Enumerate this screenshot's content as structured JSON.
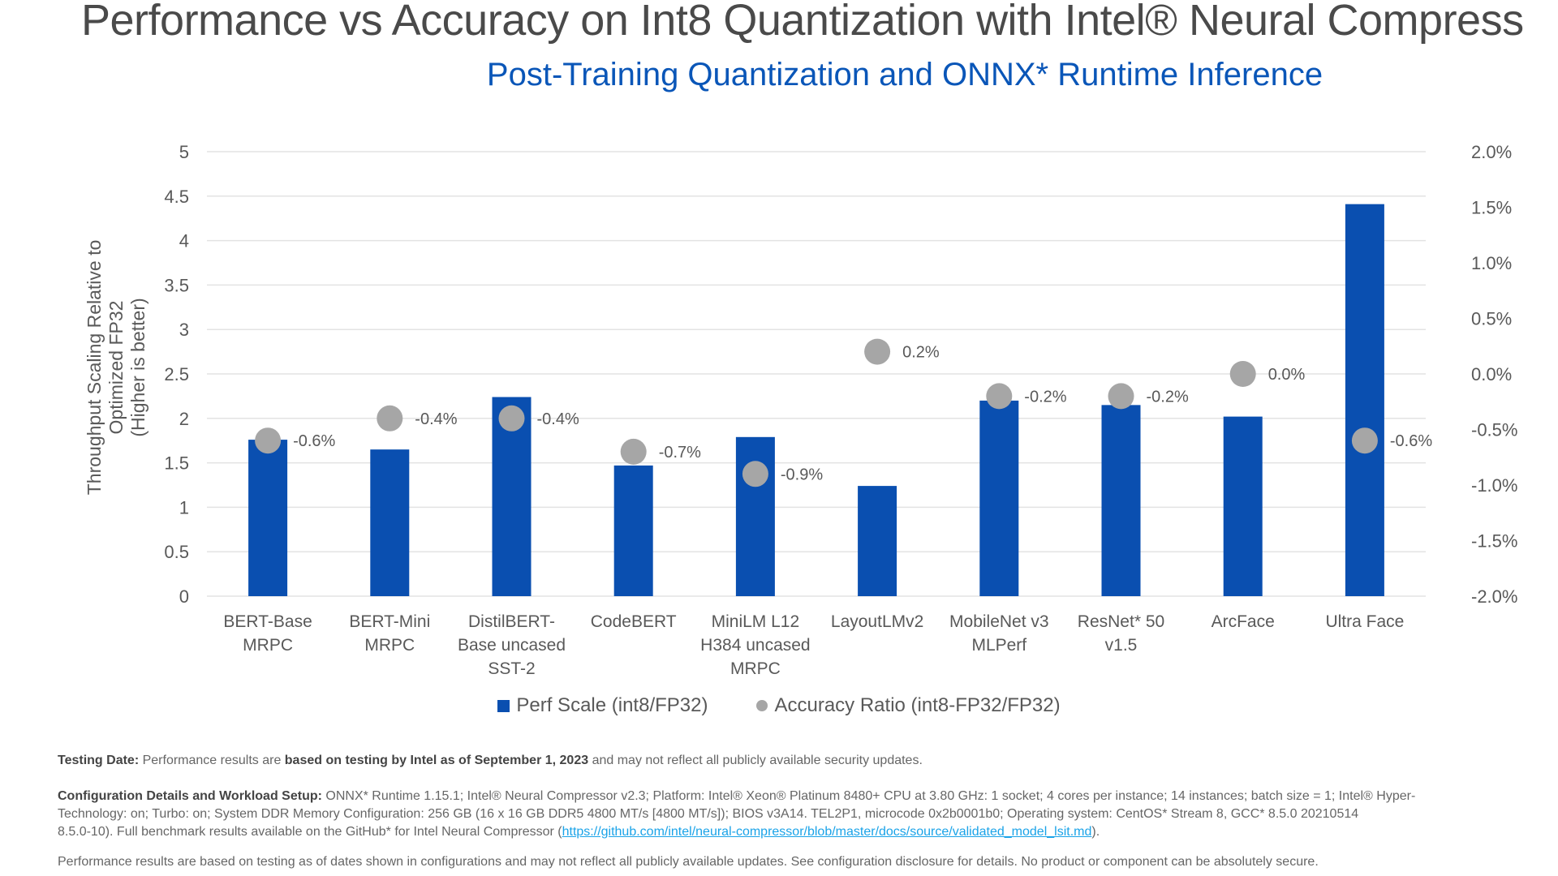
{
  "header": {
    "title": "Performance vs Accuracy on Int8 Quantization with Intel® Neural Compress",
    "subtitle": "Post-Training Quantization and ONNX* Runtime Inference"
  },
  "chart_data": {
    "type": "bar",
    "categories": [
      [
        "BERT-Base",
        "MRPC"
      ],
      [
        "BERT-Mini",
        "MRPC"
      ],
      [
        "DistilBERT-",
        "Base uncased",
        "SST-2"
      ],
      [
        "CodeBERT"
      ],
      [
        "MiniLM L12",
        "H384 uncased",
        "MRPC"
      ],
      [
        "LayoutLMv2"
      ],
      [
        "MobileNet v3",
        "MLPerf"
      ],
      [
        "ResNet* 50",
        "v1.5"
      ],
      [
        "ArcFace"
      ],
      [
        "Ultra Face"
      ]
    ],
    "series": [
      {
        "name": "Perf Scale (int8/FP32)",
        "type": "bar",
        "axis": "left",
        "color": "#0a4fb0",
        "values": [
          1.76,
          1.65,
          2.24,
          1.47,
          1.79,
          1.24,
          2.2,
          2.15,
          2.02,
          4.41
        ]
      },
      {
        "name": "Accuracy Ratio (int8-FP32/FP32)",
        "type": "scatter",
        "axis": "right",
        "color": "#a6a6a6",
        "values": [
          -0.6,
          -0.4,
          -0.4,
          -0.7,
          -0.9,
          0.2,
          -0.2,
          -0.2,
          0.0,
          -0.6
        ],
        "labels": [
          "-0.6%",
          "-0.4%",
          "-0.4%",
          "-0.7%",
          "-0.9%",
          "0.2%",
          "-0.2%",
          "-0.2%",
          "0.0%",
          "-0.6%"
        ]
      }
    ],
    "ylabel_lines": [
      "Throughput Scaling Relative to",
      "Optimized FP32",
      "(Higher is better)"
    ],
    "ylim": [
      0,
      5
    ],
    "yticks": [
      "0",
      "0.5",
      "1",
      "1.5",
      "2",
      "2.5",
      "3",
      "3.5",
      "4",
      "4.5",
      "5"
    ],
    "y2lim": [
      -2.0,
      2.0
    ],
    "y2ticks": [
      "-2.0%",
      "-1.5%",
      "-1.0%",
      "-0.5%",
      "0.0%",
      "0.5%",
      "1.0%",
      "1.5%",
      "2.0%"
    ],
    "grid": true,
    "legend_position": "bottom"
  },
  "footer": {
    "testing_label": "Testing Date:",
    "testing_pre": " Performance results are ",
    "testing_bold": "based on testing by Intel as of September 1, 2023",
    "testing_post": " and may not reflect all publicly available security updates.",
    "config_label": "Configuration Details and Workload Setup:",
    "config_line1": " ONNX* Runtime 1.15.1; Intel® Neural Compressor v2.3; Platform: Intel® Xeon® Platinum 8480+ CPU at 3.80 GHz: 1 socket; 4 cores per instance; 14 instances; batch size = 1; Intel® Hyper-",
    "config_line2": "Technology: on; Turbo: on; System DDR Memory Configuration: 256 GB (16 x 16 GB DDR5 4800 MT/s [4800 MT/s]); BIOS v3A14. TEL2P1, microcode 0x2b0001b0; Operating system: CentOS* Stream 8, GCC* 8.5.0 20210514",
    "config_line3_pre": "8.5.0-10). Full benchmark results available on the GitHub* for Intel Neural Compressor (",
    "config_link": "https://github.com/intel/neural-compressor/blob/master/docs/source/validated_model_lsit.md",
    "config_line3_post": ").",
    "disclaimer": "Performance results are based on testing as of dates shown in configurations and may not reflect all publicly available updates. See configuration disclosure for details.  No product or component can be absolutely secure."
  }
}
